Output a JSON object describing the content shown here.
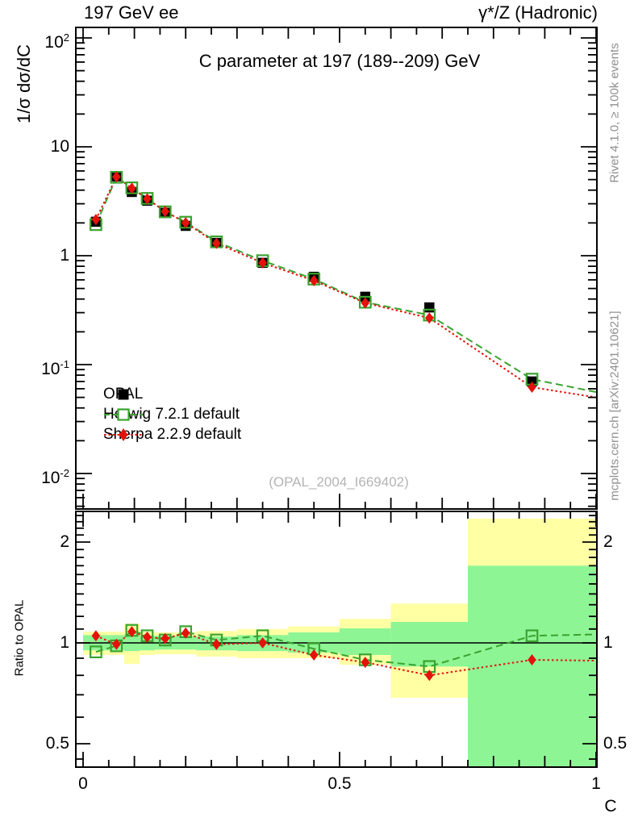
{
  "header": {
    "beam": "197 GeV ee",
    "process": "γ*/Z (Hadronic)"
  },
  "main_panel": {
    "title": "C parameter at 197 (189--209) GeV",
    "y_axis_label": "1/σ  dσ/dC",
    "watermark": "(OPAL_2004_I669402)",
    "y_tick_labels": [
      {
        "value": 100,
        "label": "10^2"
      },
      {
        "value": 10,
        "label": "10"
      },
      {
        "value": 1,
        "label": "1"
      },
      {
        "value": 0.1,
        "label": "10^-1"
      },
      {
        "value": 0.01,
        "label": "10^-2"
      }
    ]
  },
  "ratio_panel": {
    "y_axis_label": "Ratio to OPAL",
    "y_tick_labels": [
      {
        "value": 2,
        "label": "2"
      },
      {
        "value": 1,
        "label": "1"
      },
      {
        "value": 0.5,
        "label": "0.5"
      }
    ]
  },
  "x_axis": {
    "label": "C",
    "tick_labels": [
      {
        "value": 0,
        "label": "0"
      },
      {
        "value": 0.5,
        "label": "0.5"
      },
      {
        "value": 1,
        "label": "1"
      }
    ]
  },
  "legend": {
    "items": [
      {
        "label": "OPAL",
        "marker": "filled-square"
      },
      {
        "label": "Herwig 7.2.1 default",
        "marker": "open-square-dashed-line"
      },
      {
        "label": "Sherpa 2.2.9 default",
        "marker": "filled-diamond-dotted-line"
      }
    ]
  },
  "side_notes": {
    "top_right": "Rivet 4.1.0, ≥ 100k events",
    "bottom_right": "mcplots.cern.ch [arXiv:2401.10621]"
  },
  "colors": {
    "opal": "#000000",
    "herwig": "#3aa32f",
    "sherpa": "#e3120b",
    "band_yellow": "#ffffa4",
    "band_green": "#8ef595",
    "watermark": "#b4b4b4",
    "side_note": "#8f8f8f"
  },
  "chart_data": {
    "type": "line",
    "title": "C parameter at 197 (189--209) GeV",
    "xlabel": "C",
    "x_range": [
      0,
      1
    ],
    "bin_edges": [
      0,
      0.05,
      0.08,
      0.11,
      0.14,
      0.18,
      0.22,
      0.3,
      0.4,
      0.5,
      0.6,
      0.75,
      1.0
    ],
    "x": [
      0.025,
      0.065,
      0.095,
      0.125,
      0.16,
      0.2,
      0.26,
      0.35,
      0.45,
      0.55,
      0.675,
      0.875
    ],
    "main": {
      "y_scale": "log10",
      "ylabel": "1/σ dσ/dC",
      "y_range": [
        0.0047,
        127
      ],
      "series": [
        {
          "name": "OPAL",
          "values": [
            2.05,
            5.35,
            3.85,
            3.2,
            2.48,
            1.88,
            1.31,
            0.86,
            0.64,
            0.42,
            0.335,
            0.07
          ]
        },
        {
          "name": "Herwig 7.2.1 default",
          "values": [
            1.93,
            5.25,
            4.2,
            3.36,
            2.53,
            2.03,
            1.34,
            0.9,
            0.61,
            0.374,
            0.285,
            0.0735
          ],
          "line_end": {
            "x": 1.0,
            "y": 0.056
          }
        },
        {
          "name": "Sherpa 2.2.9 default",
          "values": [
            2.15,
            5.3,
            4.16,
            3.33,
            2.55,
            2.01,
            1.3,
            0.86,
            0.59,
            0.368,
            0.268,
            0.062
          ],
          "line_end": {
            "x": 1.0,
            "y": 0.05
          }
        }
      ]
    },
    "ratio": {
      "y_scale": "log2",
      "ylabel": "Ratio to OPAL",
      "y_range": [
        0.423,
        2.47
      ],
      "reference_line": 1,
      "series": [
        {
          "name": "Herwig 7.2.1 default",
          "values": [
            0.94,
            0.98,
            1.09,
            1.05,
            1.02,
            1.08,
            1.02,
            1.05,
            0.96,
            0.89,
            0.85,
            1.05
          ],
          "line_end": {
            "x": 1.0,
            "y": 1.06
          }
        },
        {
          "name": "Sherpa 2.2.9 default",
          "values": [
            1.05,
            0.99,
            1.08,
            1.04,
            1.03,
            1.07,
            0.99,
            1.0,
            0.92,
            0.875,
            0.8,
            0.89
          ],
          "line_end": {
            "x": 1.0,
            "y": 0.885
          }
        }
      ],
      "uncertainty_bands": [
        {
          "x_lo": 0.0,
          "x_hi": 0.05,
          "yellow": [
            0.92,
            1.08
          ],
          "green": [
            0.95,
            1.055
          ]
        },
        {
          "x_lo": 0.05,
          "x_hi": 0.08,
          "yellow": [
            0.92,
            1.08
          ],
          "green": [
            0.95,
            1.055
          ]
        },
        {
          "x_lo": 0.08,
          "x_hi": 0.11,
          "yellow": [
            0.865,
            1.14
          ],
          "green": [
            0.945,
            1.06
          ]
        },
        {
          "x_lo": 0.11,
          "x_hi": 0.14,
          "yellow": [
            0.92,
            1.08
          ],
          "green": [
            0.95,
            1.05
          ]
        },
        {
          "x_lo": 0.14,
          "x_hi": 0.18,
          "yellow": [
            0.925,
            1.075
          ],
          "green": [
            0.955,
            1.05
          ]
        },
        {
          "x_lo": 0.18,
          "x_hi": 0.22,
          "yellow": [
            0.925,
            1.075
          ],
          "green": [
            0.955,
            1.05
          ]
        },
        {
          "x_lo": 0.22,
          "x_hi": 0.3,
          "yellow": [
            0.91,
            1.085
          ],
          "green": [
            0.95,
            1.045
          ]
        },
        {
          "x_lo": 0.3,
          "x_hi": 0.4,
          "yellow": [
            0.9,
            1.1
          ],
          "green": [
            0.945,
            1.055
          ]
        },
        {
          "x_lo": 0.4,
          "x_hi": 0.5,
          "yellow": [
            0.9,
            1.12
          ],
          "green": [
            0.935,
            1.075
          ]
        },
        {
          "x_lo": 0.5,
          "x_hi": 0.6,
          "yellow": [
            0.86,
            1.18
          ],
          "green": [
            0.92,
            1.105
          ]
        },
        {
          "x_lo": 0.6,
          "x_hi": 0.75,
          "yellow": [
            0.686,
            1.31
          ],
          "green": [
            0.85,
            1.155
          ]
        },
        {
          "x_lo": 0.75,
          "x_hi": 1.0,
          "yellow": [
            0.36,
            2.35
          ],
          "green": [
            0.36,
            1.7
          ]
        }
      ]
    }
  }
}
